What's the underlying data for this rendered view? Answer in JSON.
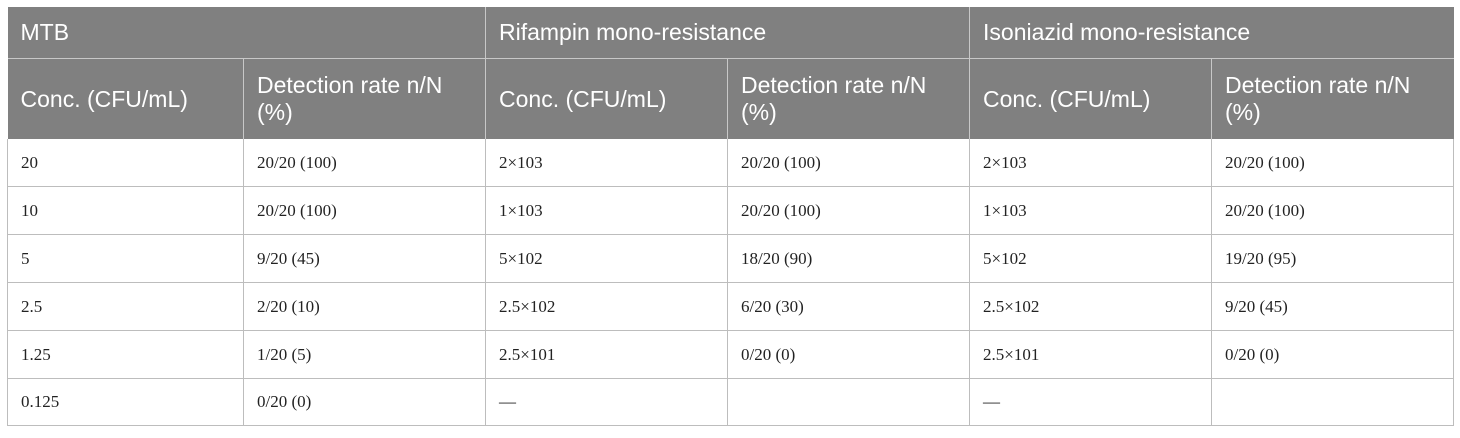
{
  "header": {
    "groups": [
      "MTB",
      "Rifampin mono-resistance",
      "Isoniazid mono-resistance"
    ],
    "subheaders": [
      "Conc. (CFU/mL)",
      "Detection rate n/N (%)",
      "Conc. (CFU/mL)",
      "Detection rate n/N (%)",
      "Conc. (CFU/mL)",
      "Detection rate n/N (%)"
    ]
  },
  "rows": [
    [
      "20",
      "20/20 (100)",
      "2×103",
      "20/20 (100)",
      "2×103",
      "20/20 (100)"
    ],
    [
      "10",
      "20/20 (100)",
      "1×103",
      "20/20 (100)",
      "1×103",
      "20/20 (100)"
    ],
    [
      "5",
      "9/20 (45)",
      "5×102",
      "18/20 (90)",
      "5×102",
      "19/20 (95)"
    ],
    [
      "2.5",
      "2/20 (10)",
      "2.5×102",
      "6/20 (30)",
      "2.5×102",
      "9/20 (45)"
    ],
    [
      "1.25",
      "1/20 (5)",
      "2.5×101",
      "0/20 (0)",
      "2.5×101",
      "0/20 (0)"
    ],
    [
      "0.125",
      "0/20 (0)",
      "—",
      "",
      "—",
      ""
    ]
  ]
}
